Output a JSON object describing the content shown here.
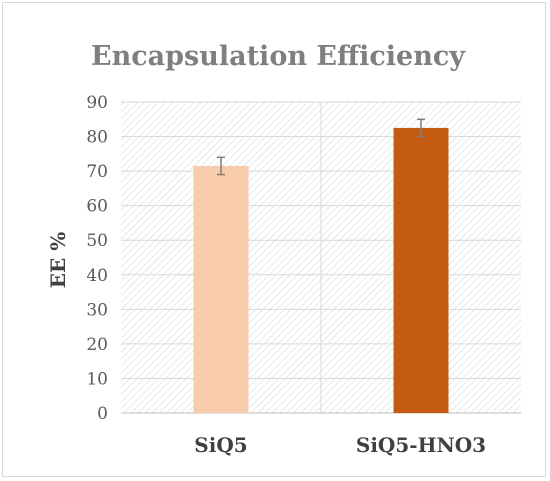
{
  "chart_data": {
    "type": "bar",
    "title": "Encapsulation Efficiency",
    "xlabel": "",
    "ylabel": "EE %",
    "categories": [
      "SiQ5",
      "SiQ5-HNO3"
    ],
    "values": [
      71.5,
      82.5
    ],
    "errors": [
      2.5,
      2.5
    ],
    "ylim": [
      0,
      90
    ],
    "yticks": [
      0,
      10,
      20,
      30,
      40,
      50,
      60,
      70,
      80,
      90
    ],
    "grid": true,
    "legend": "none",
    "bar_colors": [
      "#f8cbad",
      "#c55a11"
    ],
    "plot_background": "hatched #d9d9d9 on #ffffff",
    "gridline_color": "#d9d9d9"
  }
}
